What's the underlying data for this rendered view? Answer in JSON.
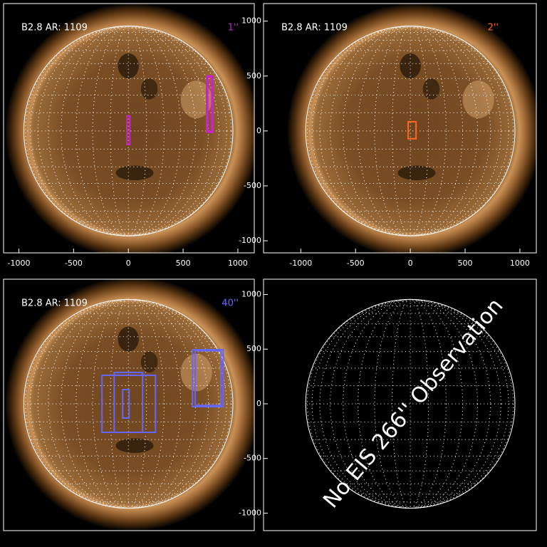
{
  "chart_data": [
    {
      "type": "image",
      "title": "B2.8 AR: 1109",
      "label": "1''",
      "label_color": "#cc22cc",
      "xlim": [
        -1140,
        1150
      ],
      "ylim": [
        -1110,
        1160
      ],
      "xticks": [
        -1000,
        -500,
        0,
        500,
        1000
      ],
      "box_color": "#cc22cc",
      "boxes": [
        {
          "x": [
            -13,
            13
          ],
          "y": [
            -124,
            136
          ]
        },
        {
          "x": [
            714,
            773
          ],
          "y": [
            -13,
            500
          ]
        },
        {
          "x": [
            725,
            762
          ],
          "y": [
            -5,
            490
          ]
        }
      ]
    },
    {
      "type": "image",
      "title": "B2.8 AR: 1109",
      "label": "2''",
      "label_color": "#ff6622",
      "xlim": [
        -1340,
        1150
      ],
      "ylim": [
        -1110,
        1160
      ],
      "xticks": [
        -1000,
        -500,
        0,
        500,
        1000
      ],
      "yticks": [
        -1000,
        -500,
        0,
        500,
        1000
      ],
      "box_color": "#ff6622",
      "boxes": [
        {
          "x": [
            -20,
            52
          ],
          "y": [
            -71,
            84
          ]
        }
      ]
    },
    {
      "type": "image",
      "title": "B2.8 AR: 1109",
      "label": "40''",
      "label_color": "#6666ff",
      "xlim": [
        -1140,
        1150
      ],
      "ylim": [
        -1160,
        1140
      ],
      "box_color": "#6666ff",
      "boxes": [
        {
          "x": [
            -241,
            247
          ],
          "y": [
            -261,
            261
          ]
        },
        {
          "x": [
            -130,
            130
          ],
          "y": [
            -261,
            287
          ]
        },
        {
          "x": [
            -52,
            7
          ],
          "y": [
            -130,
            130
          ]
        },
        {
          "x": [
            586,
            866
          ],
          "y": [
            -26,
            495
          ]
        },
        {
          "x": [
            610,
            845
          ],
          "y": [
            -15,
            485
          ]
        }
      ]
    },
    {
      "type": "empty",
      "label": "No EIS 266'' Observation",
      "xlim": [
        -1340,
        1150
      ],
      "ylim": [
        -1160,
        1140
      ],
      "yticks": [
        -1000,
        -500,
        0,
        500,
        1000
      ]
    }
  ]
}
